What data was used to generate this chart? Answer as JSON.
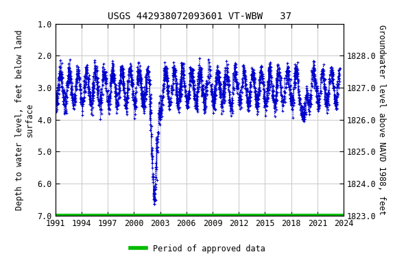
{
  "title": "USGS 442938072093601 VT-WBW   37",
  "ylabel_left": "Depth to water level, feet below land\nsurface",
  "ylabel_right": "Groundwater level above NAVD 1988, feet",
  "ylim_left": [
    7.0,
    1.0
  ],
  "ylim_right": [
    1823.0,
    1829.0
  ],
  "xlim": [
    1991,
    2024
  ],
  "xticks": [
    1991,
    1994,
    1997,
    2000,
    2003,
    2006,
    2009,
    2012,
    2015,
    2018,
    2021,
    2024
  ],
  "yticks_left": [
    1.0,
    2.0,
    3.0,
    4.0,
    5.0,
    6.0,
    7.0
  ],
  "yticks_right": [
    1823.0,
    1824.0,
    1825.0,
    1826.0,
    1827.0,
    1828.0
  ],
  "data_color": "#0000cc",
  "bar_color": "#00bb00",
  "legend_label": "Period of approved data",
  "background_color": "#ffffff",
  "grid_color": "#c8c8c8",
  "title_fontsize": 10,
  "label_fontsize": 8.5,
  "tick_fontsize": 8.5
}
